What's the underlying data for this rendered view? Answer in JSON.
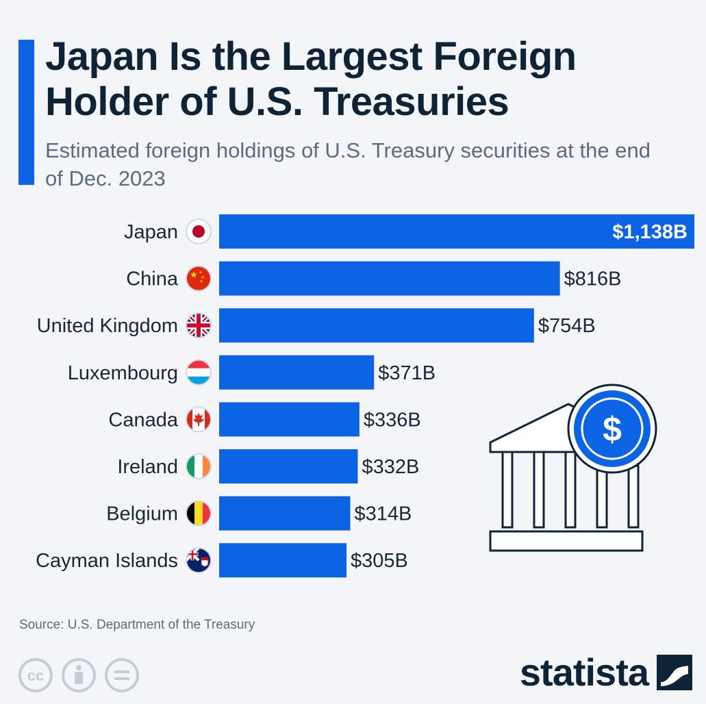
{
  "title": "Japan Is the Largest Foreign Holder of U.S. Treasuries",
  "subtitle": "Estimated foreign holdings of U.S. Treasury securities at the end of Dec. 2023",
  "source": "Source: U.S. Department of the Treasury",
  "brand": "statista",
  "colors": {
    "bar": "#0c63e4",
    "title": "#0f2337",
    "subtitle": "#5d6b7d",
    "background": "#f3f5f9"
  },
  "icons": {
    "license": [
      "creative-commons-icon",
      "attribution-icon",
      "no-derivatives-icon"
    ],
    "illustration": "bank-building-dollar-icon",
    "brand_mark": "statista-logo-icon"
  },
  "chart_data": {
    "type": "bar",
    "orientation": "horizontal",
    "categories": [
      "Japan",
      "China",
      "United Kingdom",
      "Luxembourg",
      "Canada",
      "Ireland",
      "Belgium",
      "Cayman Islands"
    ],
    "values": [
      1138,
      816,
      754,
      371,
      336,
      332,
      314,
      305
    ],
    "value_labels": [
      "$1,138B",
      "$816B",
      "$754B",
      "$371B",
      "$336B",
      "$332B",
      "$314B",
      "$305B"
    ],
    "flags": [
      "japan-flag-icon",
      "china-flag-icon",
      "uk-flag-icon",
      "luxembourg-flag-icon",
      "canada-flag-icon",
      "ireland-flag-icon",
      "belgium-flag-icon",
      "cayman-islands-flag-icon"
    ],
    "unit": "billion USD",
    "xlim": [
      0,
      1138
    ],
    "grid": false,
    "legend": "none"
  }
}
